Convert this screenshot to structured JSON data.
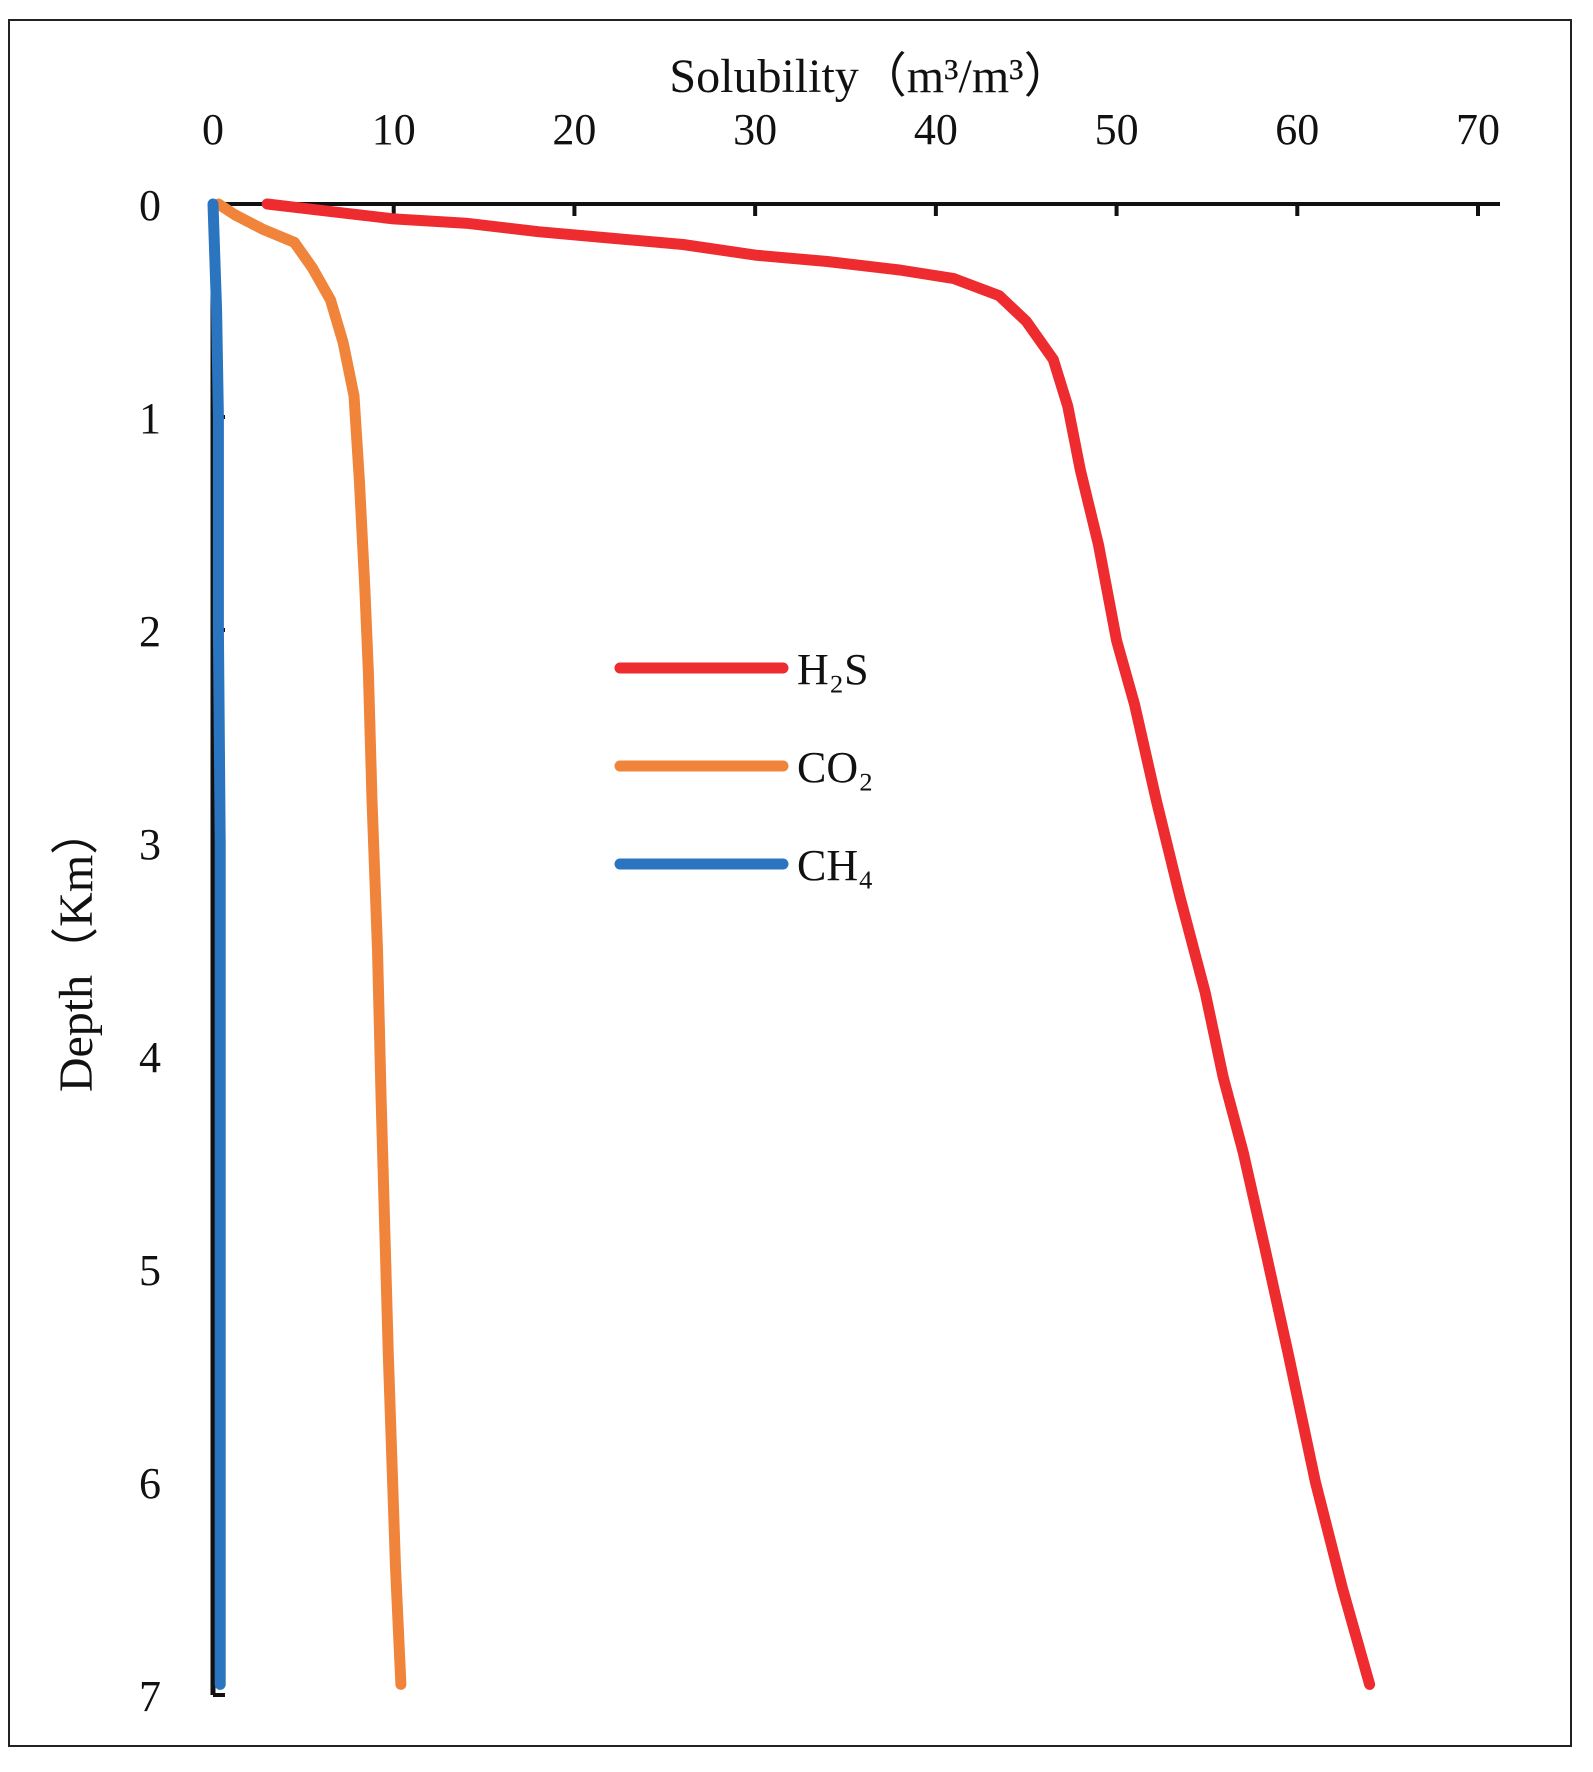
{
  "chart_data": {
    "type": "line",
    "xlabel": "Solubility（m³/m³）",
    "ylabel": "Depth（Km）",
    "x_axis_position": "top",
    "y_axis_inverted": true,
    "xlim": [
      0,
      70
    ],
    "ylim": [
      0,
      7
    ],
    "x_ticks": [
      "0",
      "10",
      "20",
      "30",
      "40",
      "50",
      "60",
      "70"
    ],
    "y_ticks": [
      "0",
      "1",
      "2",
      "3",
      "4",
      "5",
      "6",
      "7"
    ],
    "legend_position": "center",
    "series": [
      {
        "name": "H₂S",
        "color": "#EE2B2F",
        "points": [
          [
            3.0,
            0.0
          ],
          [
            6.0,
            0.03
          ],
          [
            10.0,
            0.07
          ],
          [
            14.0,
            0.09
          ],
          [
            18.0,
            0.13
          ],
          [
            22.0,
            0.16
          ],
          [
            26.0,
            0.19
          ],
          [
            30.0,
            0.24
          ],
          [
            34.0,
            0.27
          ],
          [
            38.0,
            0.31
          ],
          [
            41.0,
            0.35
          ],
          [
            43.5,
            0.43
          ],
          [
            45.0,
            0.55
          ],
          [
            46.5,
            0.73
          ],
          [
            47.3,
            0.95
          ],
          [
            48.0,
            1.25
          ],
          [
            49.0,
            1.6
          ],
          [
            50.0,
            2.05
          ],
          [
            51.0,
            2.35
          ],
          [
            52.2,
            2.8
          ],
          [
            53.5,
            3.25
          ],
          [
            54.9,
            3.7
          ],
          [
            55.9,
            4.1
          ],
          [
            57.0,
            4.45
          ],
          [
            58.2,
            4.9
          ],
          [
            59.5,
            5.4
          ],
          [
            61.0,
            6.0
          ],
          [
            62.5,
            6.5
          ],
          [
            64.0,
            6.95
          ]
        ]
      },
      {
        "name": "CO₂",
        "color": "#F0843A",
        "points": [
          [
            0.3,
            0.0
          ],
          [
            1.2,
            0.05
          ],
          [
            2.8,
            0.12
          ],
          [
            4.5,
            0.18
          ],
          [
            5.5,
            0.3
          ],
          [
            6.5,
            0.45
          ],
          [
            7.2,
            0.65
          ],
          [
            7.8,
            0.9
          ],
          [
            8.1,
            1.3
          ],
          [
            8.4,
            1.8
          ],
          [
            8.6,
            2.2
          ],
          [
            8.8,
            2.8
          ],
          [
            9.1,
            3.5
          ],
          [
            9.3,
            4.2
          ],
          [
            9.5,
            4.8
          ],
          [
            9.7,
            5.4
          ],
          [
            9.9,
            5.9
          ],
          [
            10.1,
            6.4
          ],
          [
            10.4,
            6.95
          ]
        ]
      },
      {
        "name": "CH₄",
        "color": "#2B74C0",
        "points": [
          [
            0.0,
            0.0
          ],
          [
            0.2,
            0.5
          ],
          [
            0.3,
            1.0
          ],
          [
            0.3,
            2.0
          ],
          [
            0.4,
            3.0
          ],
          [
            0.4,
            4.0
          ],
          [
            0.4,
            5.0
          ],
          [
            0.4,
            6.0
          ],
          [
            0.4,
            6.95
          ]
        ]
      }
    ]
  }
}
